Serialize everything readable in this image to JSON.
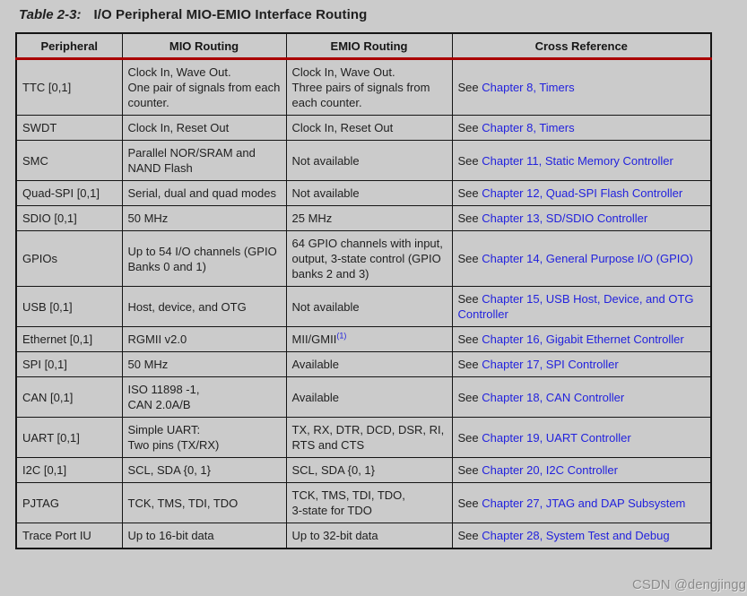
{
  "title": {
    "label": "Table 2-3:",
    "text": "I/O Peripheral MIO-EMIO Interface Routing"
  },
  "colors": {
    "background": "#cbcbcb",
    "text": "#1f1f1f",
    "link": "#2222dd",
    "header_rule": "#aa0000",
    "border": "#151515"
  },
  "table": {
    "headers": [
      "Peripheral",
      "MIO Routing",
      "EMIO Routing",
      "Cross Reference"
    ],
    "cross_prefix": "See ",
    "rows": [
      {
        "peripheral": "TTC [0,1]",
        "mio": "Clock In, Wave Out.\nOne pair of signals from each counter.",
        "emio": "Clock In, Wave Out.\nThree pairs of signals from each counter.",
        "emio_sup": "",
        "cross_link": "Chapter 8, Timers"
      },
      {
        "peripheral": "SWDT",
        "mio": "Clock In, Reset Out",
        "emio": "Clock In, Reset Out",
        "emio_sup": "",
        "cross_link": "Chapter 8, Timers"
      },
      {
        "peripheral": "SMC",
        "mio": "Parallel NOR/SRAM and NAND Flash",
        "emio": "Not available",
        "emio_sup": "",
        "cross_link": "Chapter 11, Static Memory Controller"
      },
      {
        "peripheral": "Quad-SPI [0,1]",
        "mio": "Serial, dual and quad modes",
        "emio": "Not available",
        "emio_sup": "",
        "cross_link": "Chapter 12, Quad-SPI Flash Controller"
      },
      {
        "peripheral": "SDIO [0,1]",
        "mio": "50 MHz",
        "emio": "25 MHz",
        "emio_sup": "",
        "cross_link": "Chapter 13, SD/SDIO Controller"
      },
      {
        "peripheral": "GPIOs",
        "mio": "Up to 54 I/O channels (GPIO Banks 0 and 1)",
        "emio": "64 GPIO channels with input, output, 3-state control (GPIO banks 2 and 3)",
        "emio_sup": "",
        "cross_link": "Chapter 14, General Purpose I/O (GPIO)"
      },
      {
        "peripheral": "USB [0,1]",
        "mio": "Host, device, and OTG",
        "emio": "Not available",
        "emio_sup": "",
        "cross_link": "Chapter 15, USB Host, Device, and OTG Controller"
      },
      {
        "peripheral": "Ethernet [0,1]",
        "mio": "RGMII v2.0",
        "emio": "MII/GMII",
        "emio_sup": "(1)",
        "cross_link": "Chapter 16, Gigabit Ethernet Controller"
      },
      {
        "peripheral": "SPI [0,1]",
        "mio": "50 MHz",
        "emio": "Available",
        "emio_sup": "",
        "cross_link": "Chapter 17, SPI Controller"
      },
      {
        "peripheral": "CAN [0,1]",
        "mio": "ISO 11898 -1,\nCAN 2.0A/B",
        "emio": "Available",
        "emio_sup": "",
        "cross_link": "Chapter 18, CAN Controller"
      },
      {
        "peripheral": "UART [0,1]",
        "mio": "Simple UART:\nTwo pins (TX/RX)",
        "emio": "TX, RX, DTR, DCD, DSR, RI, RTS and CTS",
        "emio_sup": "",
        "cross_link": "Chapter 19, UART Controller"
      },
      {
        "peripheral": "I2C [0,1]",
        "mio": "SCL, SDA {0, 1}",
        "emio": "SCL, SDA {0, 1}",
        "emio_sup": "",
        "cross_link": "Chapter 20, I2C Controller"
      },
      {
        "peripheral": "PJTAG",
        "mio": "TCK, TMS, TDI, TDO",
        "emio": "TCK, TMS, TDI, TDO,\n3-state for TDO",
        "emio_sup": "",
        "cross_link": "Chapter 27, JTAG and DAP Subsystem"
      },
      {
        "peripheral": "Trace Port IU",
        "mio": "Up to 16-bit data",
        "emio": "Up to 32-bit data",
        "emio_sup": "",
        "cross_link": "Chapter 28, System Test and Debug"
      }
    ]
  },
  "watermark": "CSDN @dengjingg"
}
